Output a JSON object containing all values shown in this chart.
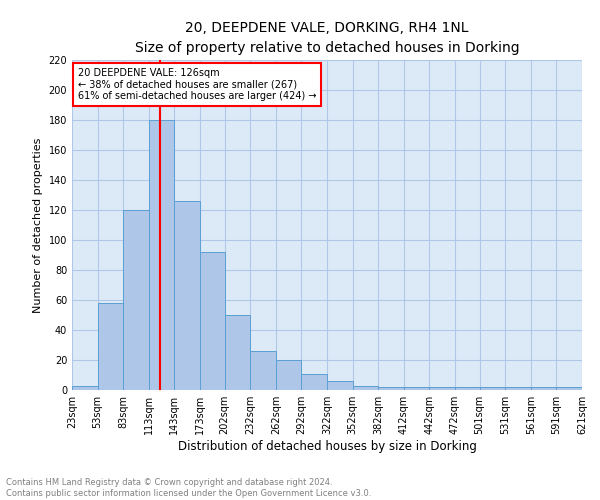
{
  "title": "20, DEEPDENE VALE, DORKING, RH4 1NL",
  "subtitle": "Size of property relative to detached houses in Dorking",
  "xlabel": "Distribution of detached houses by size in Dorking",
  "ylabel": "Number of detached properties",
  "bin_edges": [
    23,
    53,
    83,
    113,
    143,
    173,
    202,
    232,
    262,
    292,
    322,
    352,
    382,
    412,
    442,
    472,
    501,
    531,
    561,
    591,
    621
  ],
  "bar_heights": [
    3,
    58,
    120,
    180,
    126,
    92,
    50,
    26,
    20,
    11,
    6,
    3,
    2,
    2,
    2,
    2,
    2,
    2,
    2,
    2
  ],
  "bar_color": "#aec6e8",
  "bar_edgecolor": "#5a9fd4",
  "grid_color": "#b0c8e8",
  "red_line_x": 126,
  "annotation_text": "20 DEEPDENE VALE: 126sqm\n← 38% of detached houses are smaller (267)\n61% of semi-detached houses are larger (424) →",
  "annotation_box_color": "white",
  "annotation_box_edgecolor": "red",
  "tick_labels": [
    "23sqm",
    "53sqm",
    "83sqm",
    "113sqm",
    "143sqm",
    "173sqm",
    "202sqm",
    "232sqm",
    "262sqm",
    "292sqm",
    "322sqm",
    "352sqm",
    "382sqm",
    "412sqm",
    "442sqm",
    "472sqm",
    "501sqm",
    "531sqm",
    "561sqm",
    "591sqm",
    "621sqm"
  ],
  "ylim": [
    0,
    220
  ],
  "yticks": [
    0,
    20,
    40,
    60,
    80,
    100,
    120,
    140,
    160,
    180,
    200,
    220
  ],
  "footnote1": "Contains HM Land Registry data © Crown copyright and database right 2024.",
  "footnote2": "Contains public sector information licensed under the Open Government Licence v3.0.",
  "background_color": "#dce9f7",
  "title_fontsize": 10,
  "subtitle_fontsize": 9,
  "xlabel_fontsize": 8.5,
  "ylabel_fontsize": 8,
  "tick_fontsize": 7,
  "annotation_fontsize": 7,
  "footnote_fontsize": 6
}
